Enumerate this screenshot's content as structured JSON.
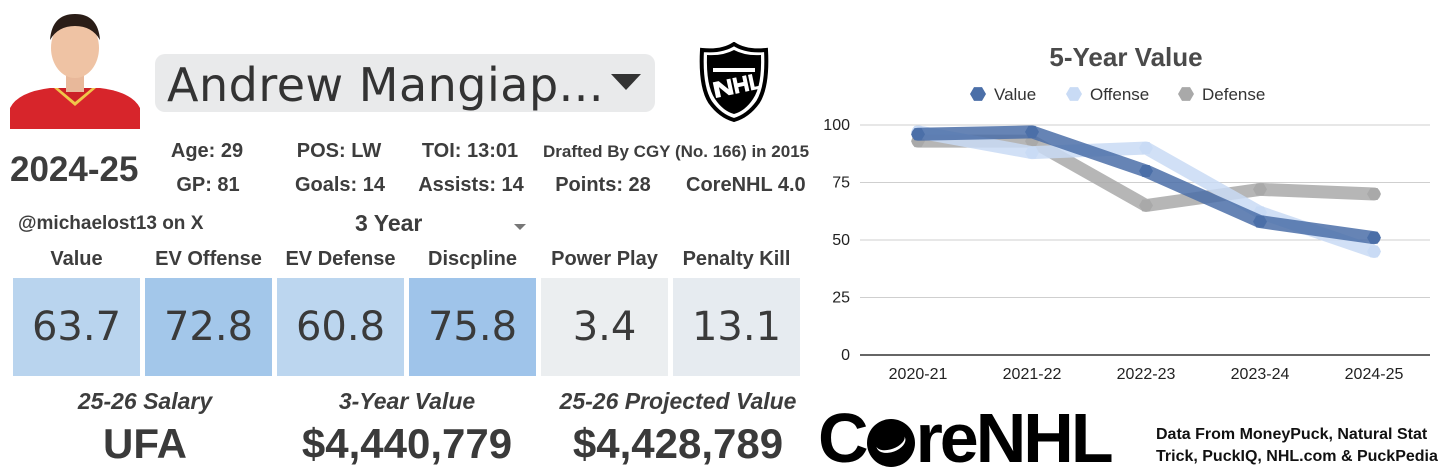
{
  "player": {
    "name": "Andrew Mangiap...",
    "season": "2024-25"
  },
  "stats": {
    "age": "Age: 29",
    "pos": "POS: LW",
    "toi": "TOI: 13:01",
    "drafted": "Drafted By CGY (No. 166) in 2015",
    "gp": "GP: 81",
    "goals": "Goals: 14",
    "assists": "Assists: 14",
    "points": "Points: 28",
    "model": "CoreNHL 4.0"
  },
  "handle": "@michaelost13 on X",
  "span_selector": "3 Year",
  "metrics": [
    {
      "label": "Value",
      "value": "63.7",
      "color": "#b9d4ee"
    },
    {
      "label": "EV Offense",
      "value": "72.8",
      "color": "#a3c7ea"
    },
    {
      "label": "EV Defense",
      "value": "60.8",
      "color": "#bcd6ef"
    },
    {
      "label": "Discpline",
      "value": "75.8",
      "color": "#9fc4ea"
    },
    {
      "label": "Power Play",
      "value": "3.4",
      "color": "#ebeef0"
    },
    {
      "label": "Penalty Kill",
      "value": "13.1",
      "color": "#e6ebf0"
    }
  ],
  "bottom": {
    "salary_label": "25-26 Salary",
    "salary_value": "UFA",
    "value3_label": "3-Year Value",
    "value3_value": "$4,440,779",
    "proj_label": "25-26 Projected Value",
    "proj_value": "$4,428,789"
  },
  "brand": {
    "name_pre": "C",
    "name_post": "reNHL",
    "credits": "Data From MoneyPuck, Natural Stat Trick, PuckIQ, NHL.com & PuckPedia"
  },
  "chart_data": {
    "type": "line",
    "title": "5-Year Value",
    "categories": [
      "2020-21",
      "2021-22",
      "2022-23",
      "2023-24",
      "2024-25"
    ],
    "ylim": [
      0,
      100
    ],
    "yticks": [
      0,
      25,
      50,
      75,
      100
    ],
    "legend": "top",
    "grid": true,
    "series": [
      {
        "name": "Defense",
        "values": [
          93,
          93,
          65,
          72,
          70
        ],
        "color": "#a9a9a9"
      },
      {
        "name": "Offense",
        "values": [
          97,
          88,
          90,
          62,
          45
        ],
        "color": "#c9dbf5"
      },
      {
        "name": "Value",
        "values": [
          96,
          97,
          80,
          58,
          51
        ],
        "color": "#4b6fa8"
      }
    ]
  }
}
